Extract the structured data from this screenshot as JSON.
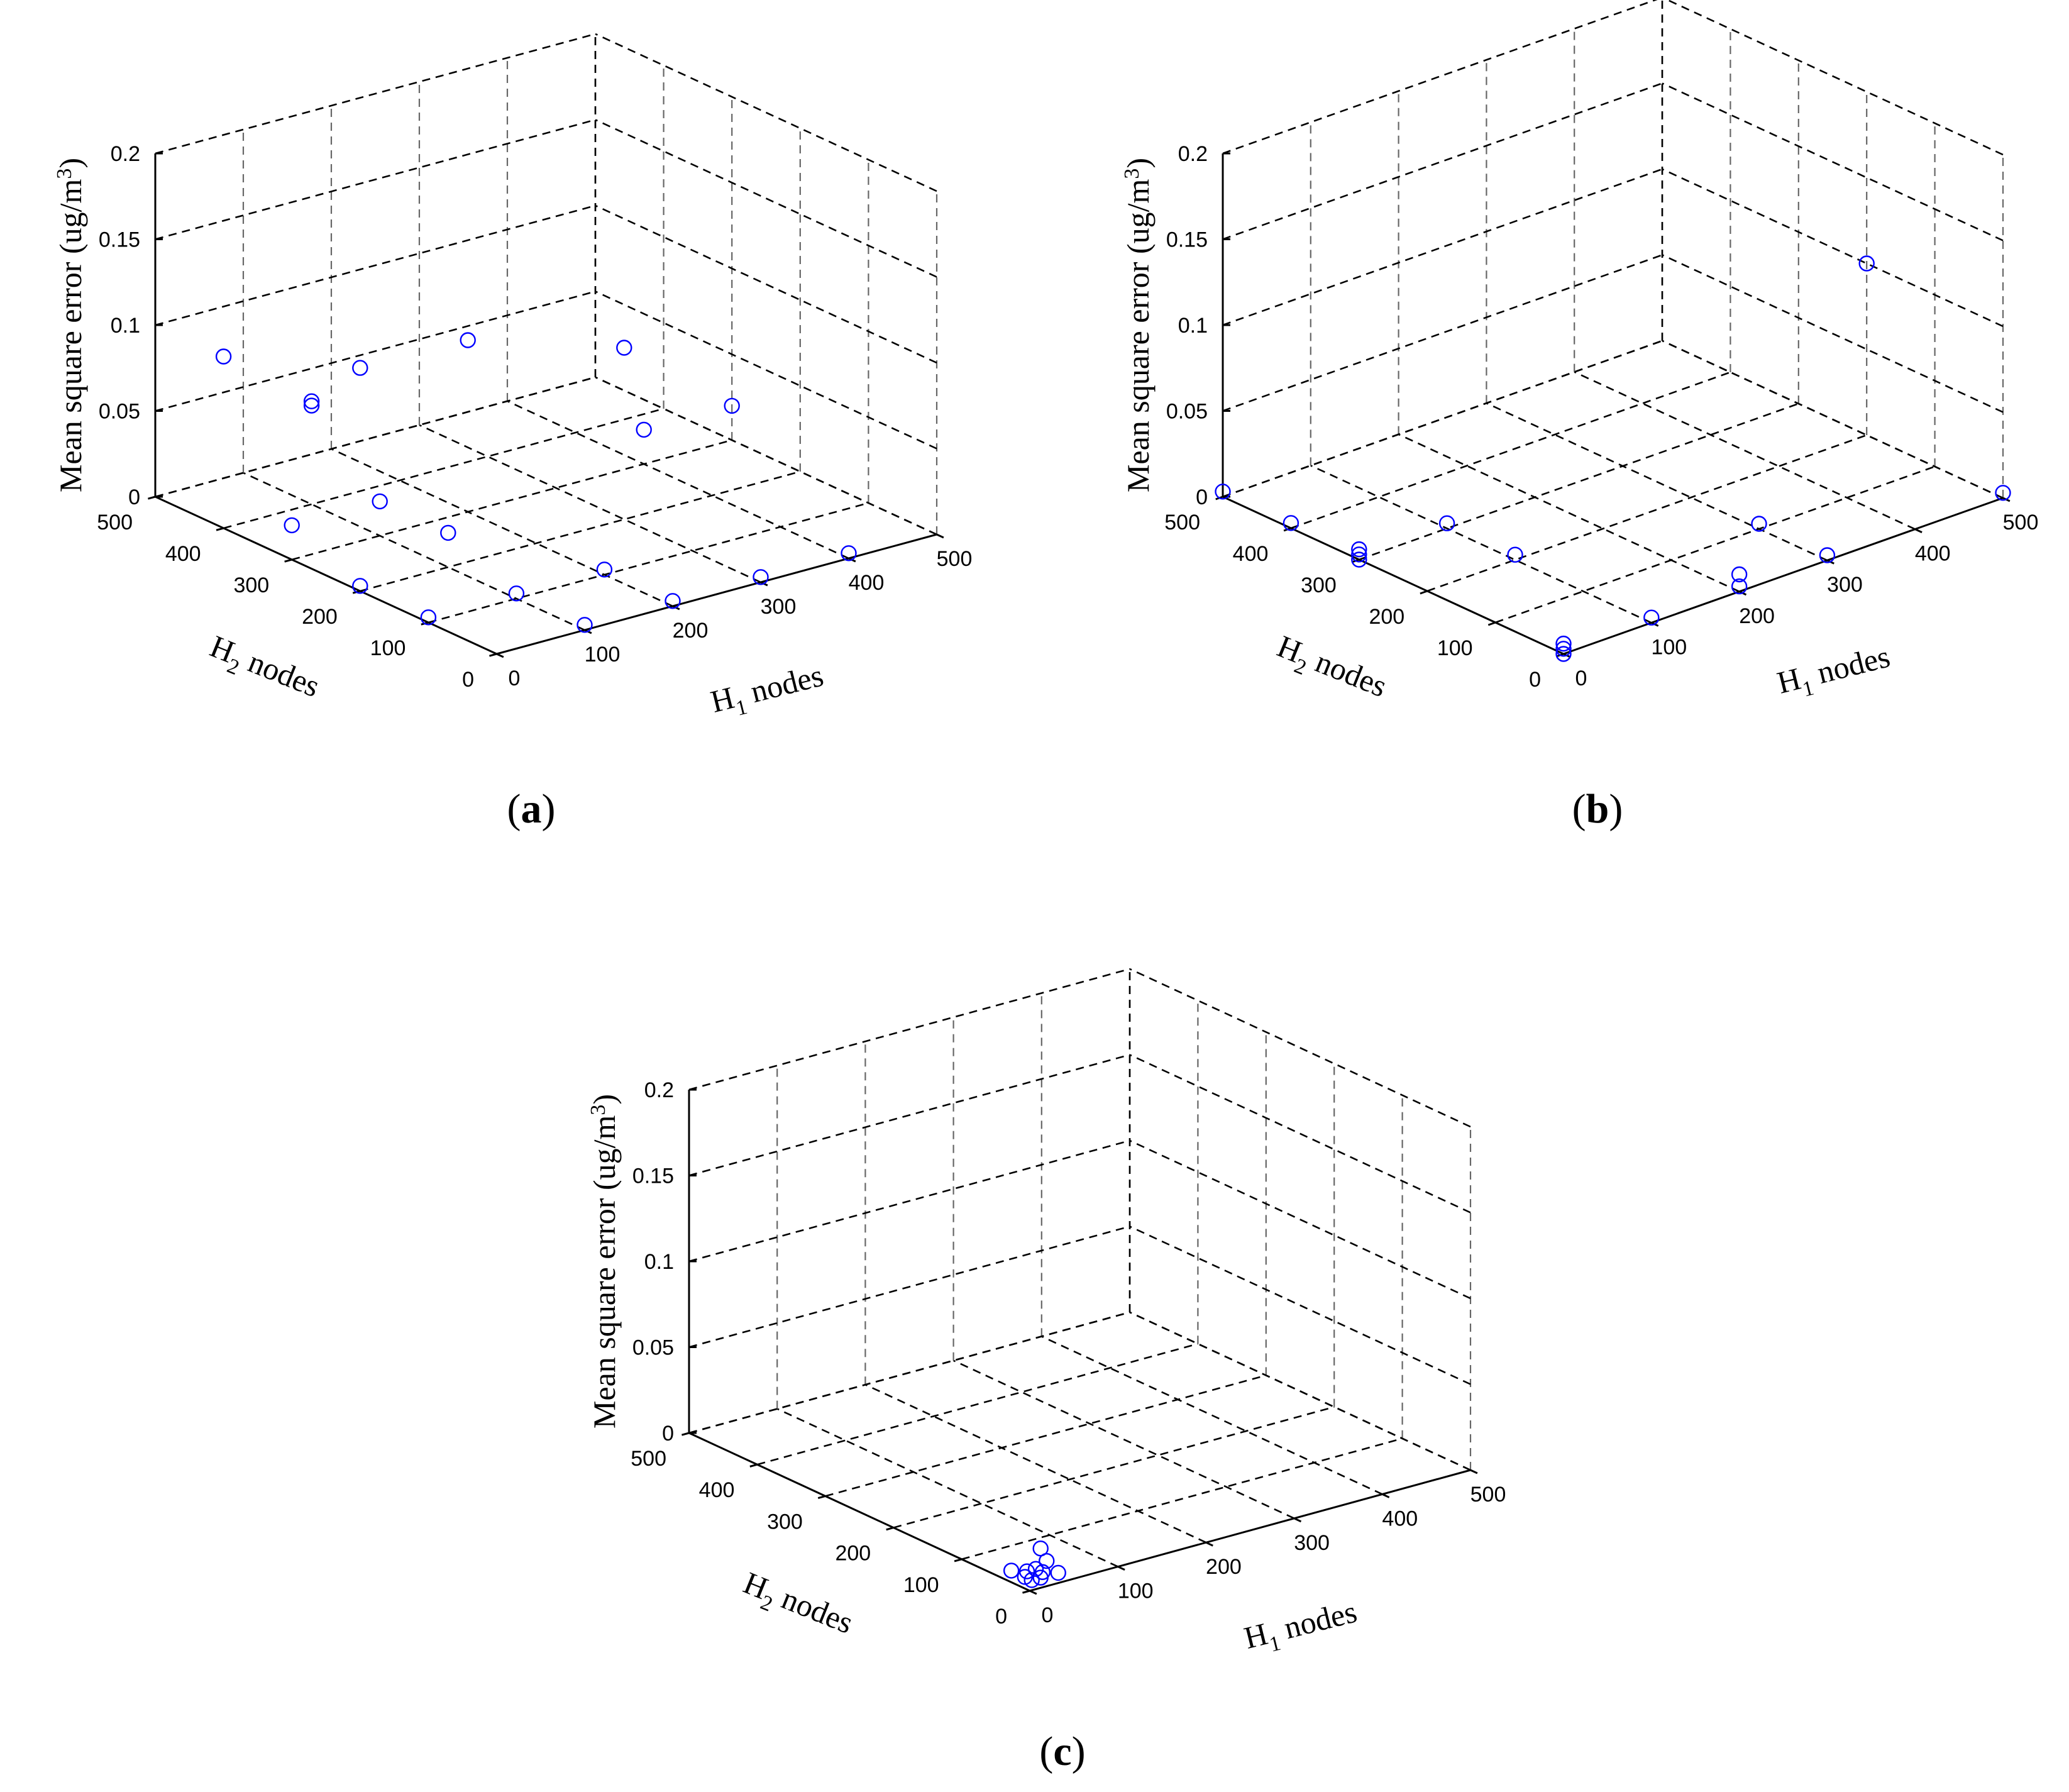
{
  "figure": {
    "panel_labels": [
      {
        "open": "(",
        "letter": "a",
        "close": ")"
      },
      {
        "open": "(",
        "letter": "b",
        "close": ")"
      },
      {
        "open": "(",
        "letter": "c",
        "close": ")"
      }
    ]
  },
  "colors": {
    "markers": "#0000ff",
    "axes": "#000000",
    "grid": "#000000"
  },
  "chart_data": [
    {
      "type": "scatter",
      "panel": "a",
      "projection": "3d",
      "grid": true,
      "marker": "open-circle",
      "xlabel": {
        "main": "H",
        "sub": "1",
        "rest": " nodes"
      },
      "ylabel": {
        "main": "H",
        "sub": "2",
        "rest": " nodes"
      },
      "zlabel": {
        "main": "Mean square error (ug/m",
        "sup": "3",
        "rest": ")"
      },
      "xlim": [
        0,
        500
      ],
      "ylim": [
        0,
        500
      ],
      "zlim": [
        0,
        0.2
      ],
      "xticks": [
        "0",
        "100",
        "200",
        "300",
        "400",
        "500"
      ],
      "yticks": [
        "0",
        "100",
        "200",
        "300",
        "400",
        "500"
      ],
      "zticks": [
        "0",
        "0.05",
        "0.1",
        "0.15",
        "0.2"
      ],
      "points": [
        {
          "x": 0,
          "y": 200,
          "z": 0.13
        },
        {
          "x": 0,
          "y": 400,
          "z": 0.1
        },
        {
          "x": 200,
          "y": 300,
          "z": 0.1
        },
        {
          "x": 300,
          "y": 200,
          "z": 0.1
        },
        {
          "x": 100,
          "y": 400,
          "z": 0.06
        },
        {
          "x": 100,
          "y": 400,
          "z": 0.0575
        },
        {
          "x": 0,
          "y": 300,
          "z": 0.02
        },
        {
          "x": 100,
          "y": 300,
          "z": 0.02
        },
        {
          "x": 100,
          "y": 200,
          "z": 0.02
        },
        {
          "x": 400,
          "y": 300,
          "z": 0.02
        },
        {
          "x": 500,
          "y": 300,
          "z": 0.02
        },
        {
          "x": 0,
          "y": 200,
          "z": 0.003
        },
        {
          "x": 0,
          "y": 100,
          "z": 0.003
        },
        {
          "x": 100,
          "y": 100,
          "z": 0.003
        },
        {
          "x": 100,
          "y": 0,
          "z": 0.003
        },
        {
          "x": 200,
          "y": 100,
          "z": 0.003
        },
        {
          "x": 200,
          "y": 0,
          "z": 0.003
        },
        {
          "x": 300,
          "y": 0,
          "z": 0.003
        },
        {
          "x": 400,
          "y": 0,
          "z": 0.003
        }
      ]
    },
    {
      "type": "scatter",
      "panel": "b",
      "projection": "3d",
      "grid": true,
      "marker": "open-circle",
      "xlabel": {
        "main": "H",
        "sub": "1",
        "rest": " nodes"
      },
      "ylabel": {
        "main": "H",
        "sub": "2",
        "rest": " nodes"
      },
      "zlabel": {
        "main": "Mean square error (ug/m",
        "sup": "3",
        "rest": ")"
      },
      "xlim": [
        0,
        500
      ],
      "ylim": [
        0,
        500
      ],
      "zlim": [
        0,
        0.2
      ],
      "xticks": [
        "0",
        "100",
        "200",
        "300",
        "400",
        "500"
      ],
      "yticks": [
        "0",
        "100",
        "200",
        "300",
        "400",
        "500"
      ],
      "zticks": [
        "0",
        "0.05",
        "0.1",
        "0.15",
        "0.2"
      ],
      "points": [
        {
          "x": 500,
          "y": 200,
          "z": 0.1
        },
        {
          "x": 500,
          "y": 0,
          "z": 0.003
        },
        {
          "x": 0,
          "y": 500,
          "z": 0.003
        },
        {
          "x": 0,
          "y": 400,
          "z": 0.003
        },
        {
          "x": 0,
          "y": 300,
          "z": 0.003
        },
        {
          "x": 0,
          "y": 300,
          "z": 0.006
        },
        {
          "x": 0,
          "y": 300,
          "z": 0.0
        },
        {
          "x": 100,
          "y": 300,
          "z": 0.003
        },
        {
          "x": 100,
          "y": 200,
          "z": 0.003
        },
        {
          "x": 0,
          "y": 0,
          "z": 0.003
        },
        {
          "x": 0,
          "y": 0,
          "z": 0.006
        },
        {
          "x": 0,
          "y": 0,
          "z": 0.0
        },
        {
          "x": 100,
          "y": 0,
          "z": 0.003
        },
        {
          "x": 200,
          "y": 0,
          "z": 0.003
        },
        {
          "x": 200,
          "y": 0,
          "z": 0.01
        },
        {
          "x": 300,
          "y": 0,
          "z": 0.003
        },
        {
          "x": 300,
          "y": 100,
          "z": 0.003
        }
      ]
    },
    {
      "type": "scatter",
      "panel": "c",
      "projection": "3d",
      "grid": true,
      "marker": "open-circle",
      "xlabel": {
        "main": "H",
        "sub": "1",
        "rest": " nodes"
      },
      "ylabel": {
        "main": "H",
        "sub": "2",
        "rest": " nodes"
      },
      "zlabel": {
        "main": "Mean square error (ug/m",
        "sup": "3",
        "rest": ")"
      },
      "xlim": [
        0,
        500
      ],
      "ylim": [
        0,
        500
      ],
      "zlim": [
        0,
        0.2
      ],
      "xticks": [
        "0",
        "100",
        "200",
        "300",
        "400",
        "500"
      ],
      "yticks": [
        "0",
        "100",
        "200",
        "300",
        "400",
        "500"
      ],
      "zticks": [
        "0",
        "0.05",
        "0.1",
        "0.15",
        "0.2"
      ],
      "points": [
        {
          "x": 20,
          "y": 10,
          "z": 0.02
        },
        {
          "x": 10,
          "y": 40,
          "z": 0.003
        },
        {
          "x": 20,
          "y": 30,
          "z": 0.003
        },
        {
          "x": 30,
          "y": 20,
          "z": 0.003
        },
        {
          "x": 40,
          "y": 10,
          "z": 0.003
        },
        {
          "x": 50,
          "y": 40,
          "z": 0.003
        },
        {
          "x": 10,
          "y": 20,
          "z": 0.003
        },
        {
          "x": 20,
          "y": 10,
          "z": 0.003
        },
        {
          "x": 10,
          "y": 10,
          "z": 0.003
        },
        {
          "x": 30,
          "y": 30,
          "z": 0.003
        }
      ]
    }
  ]
}
